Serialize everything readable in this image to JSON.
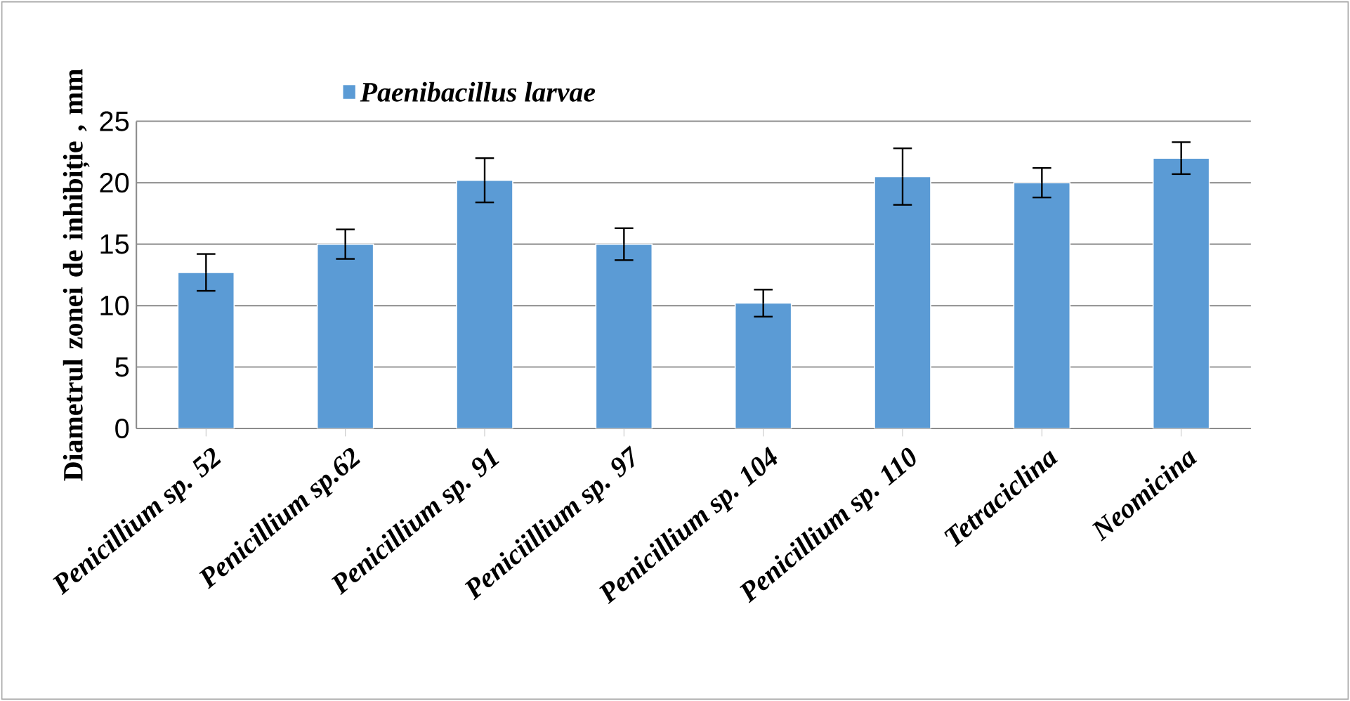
{
  "chart_data": {
    "type": "bar",
    "categories": [
      "Penicillium sp. 52",
      "Penicillium sp.62",
      "Penicillium sp. 91",
      "Peniciillium sp. 97",
      "Penicillium sp. 104",
      "Penicillium sp. 110",
      "Tetraciclina",
      "Neomicina"
    ],
    "series": [
      {
        "name": "Paenibacillus larvae",
        "color": "#5b9bd5",
        "values": [
          12.7,
          15,
          20.2,
          15,
          10.2,
          20.5,
          20,
          22
        ],
        "errors": [
          1.5,
          1.2,
          1.8,
          1.3,
          1.1,
          2.3,
          1.2,
          1.3
        ]
      }
    ],
    "ylabel": "Diametrul zonei de inhibiție , mm",
    "ylim": [
      0,
      25
    ],
    "yticks": [
      0,
      5,
      10,
      15,
      20,
      25
    ],
    "grid": "y",
    "legend": "top"
  }
}
